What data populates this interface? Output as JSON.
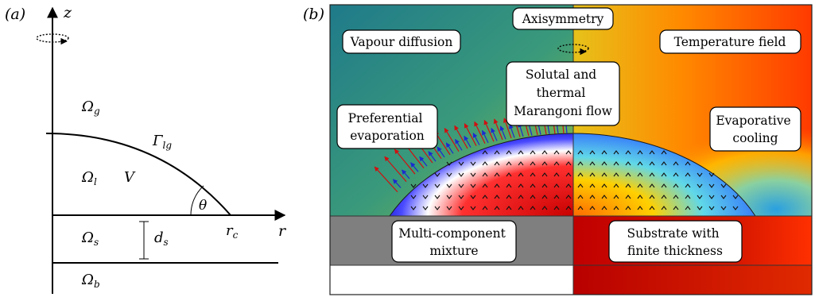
{
  "panel_a": {
    "tag": "(a)",
    "axis_z": "z",
    "axis_r": "r",
    "omega_g": "Ω",
    "omega_g_sub": "g",
    "gamma": "Γ",
    "gamma_sub": "lg",
    "omega_l": "Ω",
    "omega_l_sub": "l",
    "volume": "V",
    "angle": "θ",
    "omega_s": "Ω",
    "omega_s_sub": "s",
    "thickness": "d",
    "thickness_sub": "s",
    "contact": "r",
    "contact_sub": "c",
    "omega_b": "Ω",
    "omega_b_sub": "b"
  },
  "panel_b": {
    "tag": "(b)",
    "labels": {
      "axisymmetry": [
        "Axisymmetry"
      ],
      "vapour": [
        "Vapour diffusion"
      ],
      "temperature": [
        "Temperature field"
      ],
      "marangoni": [
        "Solutal and",
        "thermal",
        "Marangoni flow"
      ],
      "preferential": [
        "Preferential",
        "evaporation"
      ],
      "evaporative": [
        "Evaporative",
        "cooling"
      ],
      "mixture": [
        "Multi-component",
        "mixture"
      ],
      "substrate": [
        "Substrate with",
        "finite thickness"
      ]
    },
    "colors": {
      "teal": "#2a8a8a",
      "yellow_green": "#c6cc2a",
      "hot_red": "#d40000",
      "orange": "#ff8a00",
      "grey": "#7f7f7f",
      "arrow_red": "#d01010",
      "arrow_blue": "#1a2ad0"
    }
  }
}
